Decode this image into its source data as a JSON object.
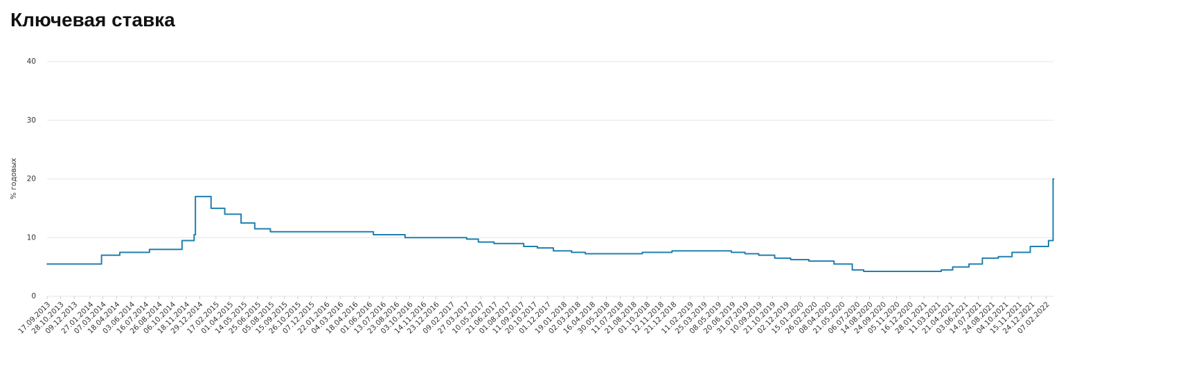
{
  "chart_data": {
    "type": "step",
    "title": "Ключевая ставка",
    "y_label": "% годовых",
    "ylim": [
      0,
      40
    ],
    "yticks": [
      0,
      10,
      20,
      30,
      40
    ],
    "grid": true,
    "xlim": [
      "17.09.2013",
      "01.03.2022"
    ],
    "xticks": [
      "17.09.2013",
      "28.10.2013",
      "09.12.2013",
      "27.01.2014",
      "07.03.2014",
      "18.04.2014",
      "03.06.2014",
      "16.07.2014",
      "26.08.2014",
      "06.10.2014",
      "18.11.2014",
      "29.12.2014",
      "17.02.2015",
      "01.04.2015",
      "14.05.2015",
      "25.06.2015",
      "05.08.2015",
      "15.09.2015",
      "26.10.2015",
      "07.12.2015",
      "22.01.2016",
      "04.03.2016",
      "18.04.2016",
      "01.06.2016",
      "13.07.2016",
      "23.08.2016",
      "03.10.2016",
      "14.11.2016",
      "23.12.2016",
      "09.02.2017",
      "27.03.2017",
      "10.05.2017",
      "21.06.2017",
      "01.08.2017",
      "11.09.2017",
      "20.10.2017",
      "01.12.2017",
      "19.01.2018",
      "02.03.2018",
      "16.04.2018",
      "30.05.2018",
      "11.07.2018",
      "21.08.2018",
      "01.10.2018",
      "12.11.2018",
      "21.12.2018",
      "11.02.2019",
      "25.03.2019",
      "08.05.2019",
      "20.06.2019",
      "31.07.2019",
      "10.09.2019",
      "21.10.2019",
      "02.12.2019",
      "15.01.2020",
      "26.02.2020",
      "08.04.2020",
      "21.05.2020",
      "06.07.2020",
      "14.08.2020",
      "24.09.2020",
      "05.11.2020",
      "16.12.2020",
      "28.01.2021",
      "11.03.2021",
      "21.04.2021",
      "03.06.2021",
      "14.07.2021",
      "24.08.2021",
      "04.10.2021",
      "15.11.2021",
      "24.12.2021",
      "07.02.2022"
    ],
    "series": [
      {
        "color": "#1f7fae",
        "x": [
          "17.09.2013",
          "03.03.2014",
          "28.04.2014",
          "28.07.2014",
          "05.11.2014",
          "12.12.2014",
          "16.12.2014",
          "02.02.2015",
          "16.03.2015",
          "05.05.2015",
          "16.06.2015",
          "03.08.2015",
          "14.06.2016",
          "19.09.2016",
          "27.03.2017",
          "02.05.2017",
          "19.06.2017",
          "18.09.2017",
          "30.10.2017",
          "18.12.2017",
          "12.02.2018",
          "26.03.2018",
          "17.09.2018",
          "17.12.2018",
          "17.06.2019",
          "29.07.2019",
          "09.09.2019",
          "28.10.2019",
          "16.12.2019",
          "10.02.2020",
          "27.04.2020",
          "22.06.2020",
          "27.07.2020",
          "22.03.2021",
          "26.04.2021",
          "15.06.2021",
          "26.07.2021",
          "13.09.2021",
          "25.10.2021",
          "20.12.2021",
          "14.02.2022",
          "28.02.2022"
        ],
        "values": [
          5.5,
          7,
          7.5,
          8,
          9.5,
          10.5,
          17,
          15,
          14,
          12.5,
          11.5,
          11,
          10.5,
          10,
          9.75,
          9.25,
          9,
          8.5,
          8.25,
          7.75,
          7.5,
          7.25,
          7.5,
          7.75,
          7.5,
          7.25,
          7,
          6.5,
          6.25,
          6,
          5.5,
          4.5,
          4.25,
          4.5,
          5,
          5.5,
          6.5,
          6.75,
          7.5,
          8.5,
          9.5,
          20
        ]
      }
    ]
  }
}
